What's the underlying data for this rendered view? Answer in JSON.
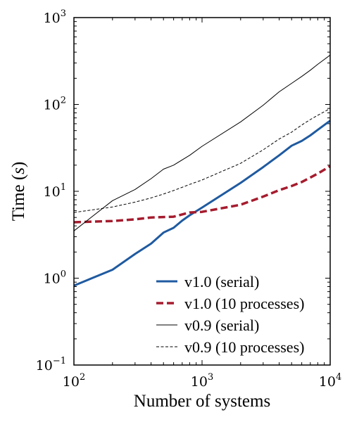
{
  "chart_data": {
    "type": "line",
    "xscale": "log",
    "yscale": "log",
    "xlim": [
      100,
      10000
    ],
    "ylim": [
      0.1,
      1000
    ],
    "xlabel": "Number of systems",
    "ylabel_prefix": "Time (",
    "ylabel_symbol": "s",
    "ylabel_suffix": ")",
    "x_ticks": [
      {
        "value": 100,
        "base": "10",
        "exp": "2"
      },
      {
        "value": 1000,
        "base": "10",
        "exp": "3"
      },
      {
        "value": 10000,
        "base": "10",
        "exp": "4"
      }
    ],
    "y_ticks": [
      {
        "value": 0.1,
        "base": "10",
        "exp": "−1"
      },
      {
        "value": 1,
        "base": "10",
        "exp": "0"
      },
      {
        "value": 10,
        "base": "10",
        "exp": "1"
      },
      {
        "value": 100,
        "base": "10",
        "exp": "2"
      },
      {
        "value": 1000,
        "base": "10",
        "exp": "3"
      }
    ],
    "legend_position": "lower-right",
    "series": [
      {
        "name": "v1.0 (serial)",
        "color": "#1f5aa0",
        "style": "solid",
        "width": 3,
        "points": [
          [
            100,
            0.82
          ],
          [
            200,
            1.25
          ],
          [
            300,
            1.9
          ],
          [
            400,
            2.5
          ],
          [
            500,
            3.35
          ],
          [
            600,
            3.8
          ],
          [
            700,
            4.6
          ],
          [
            800,
            5.3
          ],
          [
            1000,
            6.5
          ],
          [
            2000,
            12.5
          ],
          [
            3000,
            19.0
          ],
          [
            4000,
            26.0
          ],
          [
            5000,
            33.5
          ],
          [
            6000,
            38.0
          ],
          [
            7000,
            44.0
          ],
          [
            8000,
            51.0
          ],
          [
            10000,
            65.0
          ]
        ]
      },
      {
        "name": "v1.0 (10 processes)",
        "color": "#a51c2e",
        "style": "dashed",
        "width": 3.5,
        "points": [
          [
            100,
            4.4
          ],
          [
            200,
            4.55
          ],
          [
            300,
            4.75
          ],
          [
            400,
            5.0
          ],
          [
            600,
            5.1
          ],
          [
            800,
            5.7
          ],
          [
            1000,
            5.8
          ],
          [
            2000,
            7.0
          ],
          [
            3000,
            8.7
          ],
          [
            4000,
            10.3
          ],
          [
            5000,
            11.5
          ],
          [
            6000,
            12.8
          ],
          [
            7000,
            14.4
          ],
          [
            8000,
            16.0
          ],
          [
            10000,
            19.5
          ]
        ]
      },
      {
        "name": "v0.9 (serial)",
        "color": "#000000",
        "style": "solid",
        "width": 1,
        "points": [
          [
            100,
            3.5
          ],
          [
            200,
            7.8
          ],
          [
            300,
            10.5
          ],
          [
            400,
            14.0
          ],
          [
            500,
            18.0
          ],
          [
            600,
            20.0
          ],
          [
            800,
            26.0
          ],
          [
            1000,
            33.0
          ],
          [
            2000,
            63.0
          ],
          [
            3000,
            98.0
          ],
          [
            4000,
            140.0
          ],
          [
            5000,
            175.0
          ],
          [
            6000,
            210.0
          ],
          [
            7000,
            248.0
          ],
          [
            8000,
            290.0
          ],
          [
            10000,
            370.0
          ]
        ]
      },
      {
        "name": "v0.9 (10 processes)",
        "color": "#000000",
        "style": "dashed-thin",
        "width": 1,
        "points": [
          [
            100,
            5.7
          ],
          [
            200,
            6.6
          ],
          [
            300,
            7.5
          ],
          [
            400,
            8.4
          ],
          [
            500,
            9.3
          ],
          [
            600,
            10.2
          ],
          [
            800,
            12.0
          ],
          [
            1000,
            13.5
          ],
          [
            2000,
            21.0
          ],
          [
            3000,
            30.0
          ],
          [
            4000,
            40.0
          ],
          [
            5000,
            48.0
          ],
          [
            6000,
            58.0
          ],
          [
            7000,
            67.0
          ],
          [
            8000,
            75.0
          ],
          [
            10000,
            90.0
          ]
        ]
      }
    ]
  }
}
